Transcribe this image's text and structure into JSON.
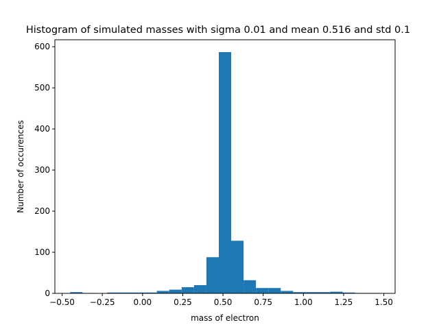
{
  "chart_data": {
    "type": "bar",
    "title": "Histogram of simulated masses with sigma 0.01 and mean 0.516 and std 0.1",
    "xlabel": "mass of electron",
    "ylabel": "Number of occurences",
    "xlim": [
      -0.545,
      1.57
    ],
    "ylim": [
      0,
      617
    ],
    "xticks": [
      -0.5,
      -0.25,
      0.0,
      0.25,
      0.5,
      0.75,
      1.0,
      1.25,
      1.5
    ],
    "xtick_labels": [
      "−0.50",
      "−0.25",
      "0.00",
      "0.25",
      "0.50",
      "0.75",
      "1.00",
      "1.25",
      "1.50"
    ],
    "yticks": [
      0,
      100,
      200,
      300,
      400,
      500,
      600
    ],
    "ytick_labels": [
      "0",
      "100",
      "200",
      "300",
      "400",
      "500",
      "600"
    ],
    "grid": false,
    "bar_color": "#1f77b4",
    "bins": [
      {
        "x0": -0.45,
        "x1": -0.373,
        "count": 3
      },
      {
        "x0": -0.373,
        "x1": -0.296,
        "count": 1
      },
      {
        "x0": -0.296,
        "x1": -0.219,
        "count": 0
      },
      {
        "x0": -0.219,
        "x1": -0.142,
        "count": 2
      },
      {
        "x0": -0.142,
        "x1": -0.065,
        "count": 2
      },
      {
        "x0": -0.065,
        "x1": 0.012,
        "count": 2
      },
      {
        "x0": 0.012,
        "x1": 0.089,
        "count": 2
      },
      {
        "x0": 0.089,
        "x1": 0.166,
        "count": 6
      },
      {
        "x0": 0.166,
        "x1": 0.243,
        "count": 9
      },
      {
        "x0": 0.243,
        "x1": 0.32,
        "count": 15
      },
      {
        "x0": 0.32,
        "x1": 0.397,
        "count": 20
      },
      {
        "x0": 0.397,
        "x1": 0.474,
        "count": 88
      },
      {
        "x0": 0.474,
        "x1": 0.551,
        "count": 587
      },
      {
        "x0": 0.551,
        "x1": 0.628,
        "count": 128
      },
      {
        "x0": 0.628,
        "x1": 0.705,
        "count": 32
      },
      {
        "x0": 0.705,
        "x1": 0.782,
        "count": 13
      },
      {
        "x0": 0.782,
        "x1": 0.859,
        "count": 13
      },
      {
        "x0": 0.859,
        "x1": 0.936,
        "count": 6
      },
      {
        "x0": 0.936,
        "x1": 1.013,
        "count": 3
      },
      {
        "x0": 1.013,
        "x1": 1.09,
        "count": 3
      },
      {
        "x0": 1.09,
        "x1": 1.167,
        "count": 3
      },
      {
        "x0": 1.167,
        "x1": 1.244,
        "count": 4
      },
      {
        "x0": 1.244,
        "x1": 1.321,
        "count": 2
      },
      {
        "x0": 1.321,
        "x1": 1.398,
        "count": 1
      },
      {
        "x0": 1.398,
        "x1": 1.475,
        "count": 1
      }
    ]
  }
}
